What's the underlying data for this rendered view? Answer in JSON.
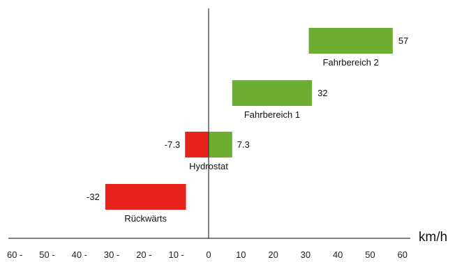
{
  "chart_data": {
    "type": "bar",
    "orientation": "horizontal-range",
    "xlabel": "km/h",
    "xlim": [
      -60,
      60
    ],
    "tick_labels": [
      "60 -",
      "50 -",
      "40 -",
      "30 -",
      "20 -",
      "10 -",
      "0",
      "10",
      "20",
      "30",
      "40",
      "50",
      "60"
    ],
    "ranges": [
      {
        "name": "Fahrbereich 2",
        "start": 31,
        "end": 57,
        "value_label": "57",
        "color": "#6cad32"
      },
      {
        "name": "Fahrbereich 1",
        "start": 7.3,
        "end": 32,
        "value_label": "32",
        "color": "#6cad32"
      },
      {
        "name": "Hydrostat",
        "start": -7.3,
        "end": 7.3,
        "neg_label": "-7.3",
        "pos_label": "7.3",
        "neg_color": "#e8231c",
        "pos_color": "#6cad32"
      },
      {
        "name": "Rückwärts",
        "start": -32,
        "end": -7,
        "value_label": "-32",
        "color": "#e8231c"
      }
    ],
    "grid": false
  }
}
